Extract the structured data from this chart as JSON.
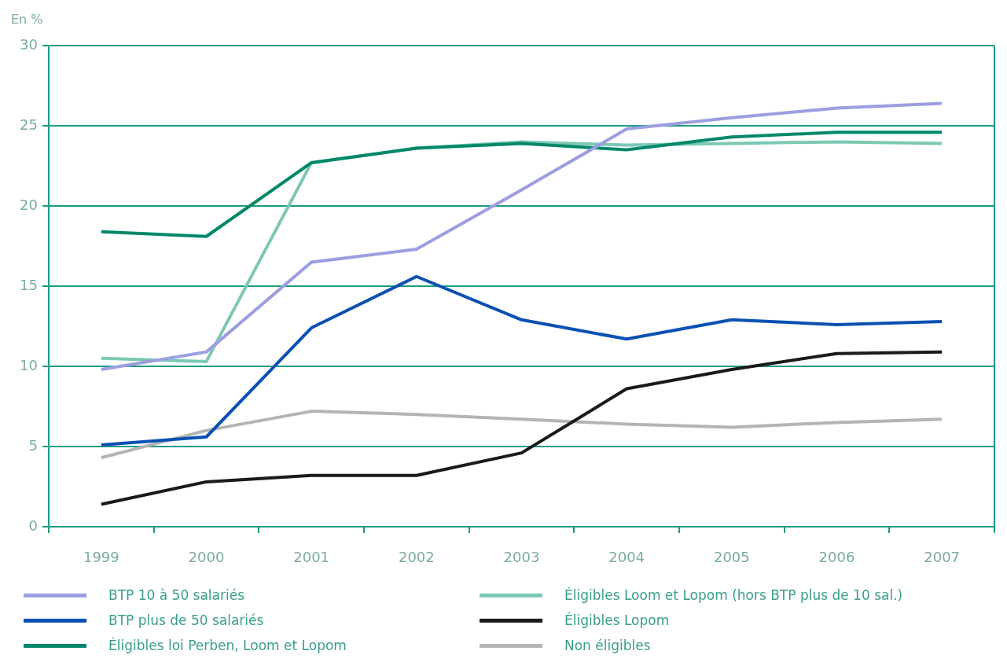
{
  "chart_data": {
    "type": "line",
    "ylabel": "En %",
    "categories": [
      "1999",
      "2000",
      "2001",
      "2002",
      "2003",
      "2004",
      "2005",
      "2006",
      "2007"
    ],
    "series": [
      {
        "name": "BTP 10 à 50 salariés",
        "color": "#9c9ee0",
        "values": [
          9.8,
          10.9,
          16.5,
          17.3,
          21.0,
          24.8,
          25.5,
          26.1,
          26.4
        ]
      },
      {
        "name": "BTP plus de 50 salariés",
        "color": "#0a50b4",
        "values": [
          5.1,
          5.6,
          12.4,
          15.6,
          12.9,
          11.7,
          12.9,
          12.6,
          12.8
        ]
      },
      {
        "name": "Éligibles loi Perben, Loom et Lopom",
        "color": "#00876a",
        "values": [
          18.4,
          18.1,
          22.7,
          23.6,
          23.9,
          23.5,
          24.3,
          24.6,
          24.6
        ]
      },
      {
        "name": "Éligibles Loom et Lopom (hors BTP plus de 10 sal.)",
        "color": "#7cc8b4",
        "values": [
          10.5,
          10.3,
          22.7,
          23.6,
          24.0,
          23.8,
          23.9,
          24.0,
          23.9
        ]
      },
      {
        "name": "Éligibles Lopom",
        "color": "#1a1a1a",
        "values": [
          1.4,
          2.8,
          3.2,
          3.2,
          4.6,
          8.6,
          9.8,
          10.8,
          10.9
        ]
      },
      {
        "name": "Non éligibles",
        "color": "#b4b4b4",
        "values": [
          4.3,
          6.0,
          7.2,
          7.0,
          6.7,
          6.4,
          6.2,
          6.5,
          6.7
        ]
      }
    ],
    "ylim": [
      0,
      30
    ],
    "yticks": [
      0,
      5,
      10,
      15,
      20,
      25,
      30
    ],
    "grid": "y",
    "legend": "bottom",
    "marker": "none"
  }
}
